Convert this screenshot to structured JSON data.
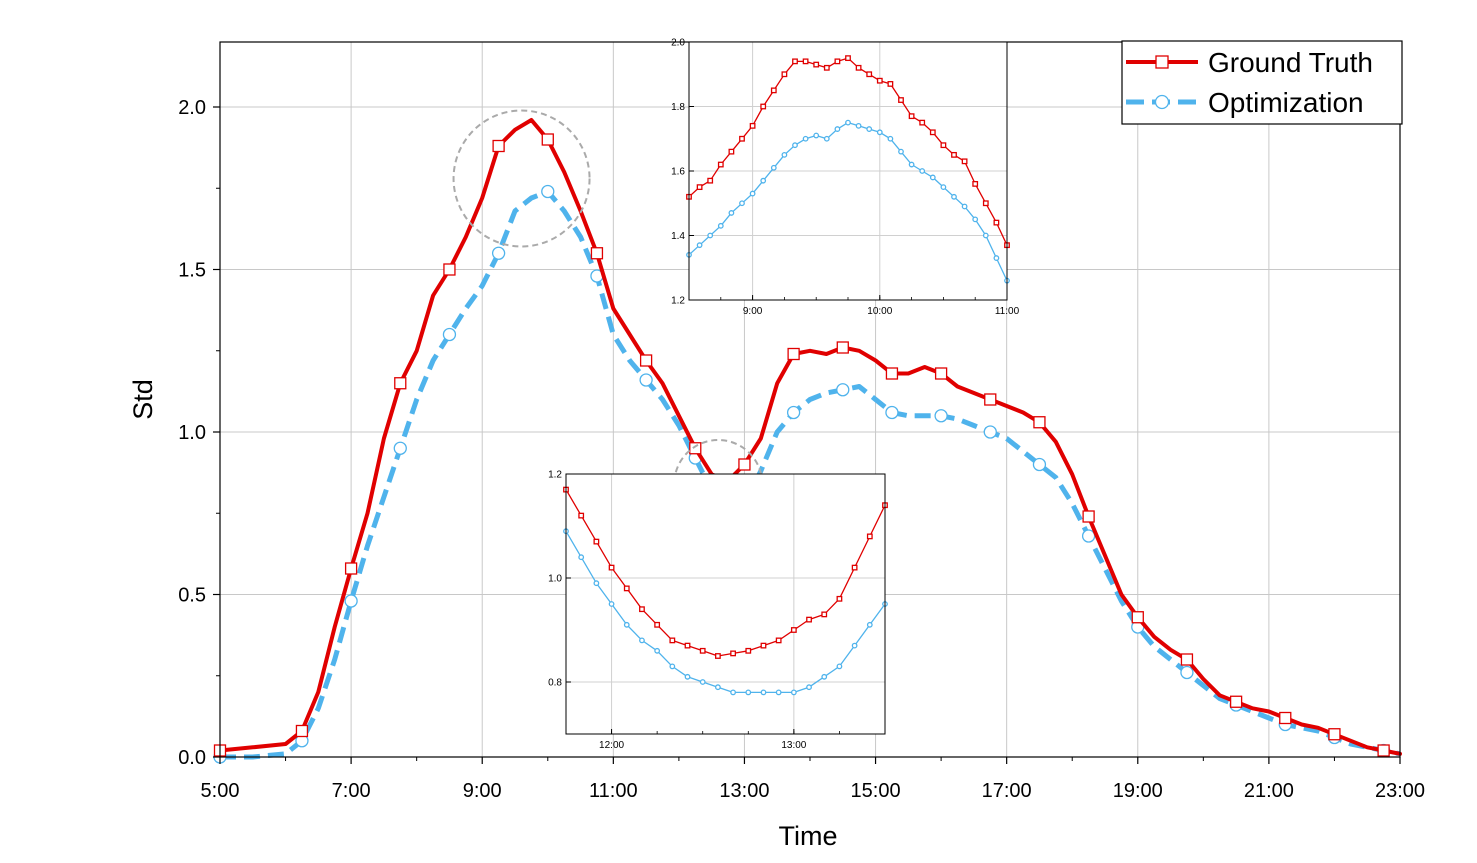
{
  "chart_data": [
    {
      "type": "line",
      "xlabel": "Time",
      "ylabel": "Std",
      "xlim": [
        "5:00",
        "23:00"
      ],
      "ylim": [
        0,
        2.2
      ],
      "grid": true,
      "legend_position": "top-right",
      "x_ticks": [
        "5:00",
        "7:00",
        "9:00",
        "11:00",
        "13:00",
        "15:00",
        "17:00",
        "19:00",
        "21:00",
        "23:00"
      ],
      "y_ticks": [
        "0.0",
        "0.5",
        "1.0",
        "1.5",
        "2.0"
      ],
      "series": [
        {
          "name": "Ground Truth",
          "color": "#e00000",
          "style": "solid",
          "marker": "square",
          "x": [
            "5:00",
            "5:30",
            "6:00",
            "6:15",
            "6:30",
            "6:45",
            "7:00",
            "7:15",
            "7:30",
            "7:45",
            "8:00",
            "8:15",
            "8:30",
            "8:45",
            "9:00",
            "9:15",
            "9:30",
            "9:45",
            "10:00",
            "10:15",
            "10:30",
            "10:45",
            "11:00",
            "11:15",
            "11:30",
            "11:45",
            "12:00",
            "12:15",
            "12:30",
            "12:45",
            "13:00",
            "13:15",
            "13:30",
            "13:45",
            "14:00",
            "14:15",
            "14:30",
            "14:45",
            "15:00",
            "15:15",
            "15:30",
            "15:45",
            "16:00",
            "16:15",
            "16:30",
            "16:45",
            "17:00",
            "17:15",
            "17:30",
            "17:45",
            "18:00",
            "18:15",
            "18:30",
            "18:45",
            "19:00",
            "19:15",
            "19:30",
            "19:45",
            "20:00",
            "20:15",
            "20:30",
            "20:45",
            "21:00",
            "21:15",
            "21:30",
            "21:45",
            "22:00",
            "22:15",
            "22:30",
            "22:45",
            "23:00"
          ],
          "y": [
            0.02,
            0.03,
            0.04,
            0.08,
            0.2,
            0.4,
            0.58,
            0.75,
            0.98,
            1.15,
            1.25,
            1.42,
            1.5,
            1.6,
            1.72,
            1.88,
            1.93,
            1.96,
            1.9,
            1.8,
            1.68,
            1.55,
            1.38,
            1.3,
            1.22,
            1.15,
            1.05,
            0.95,
            0.87,
            0.85,
            0.9,
            0.98,
            1.15,
            1.24,
            1.25,
            1.24,
            1.26,
            1.25,
            1.22,
            1.18,
            1.18,
            1.2,
            1.18,
            1.14,
            1.12,
            1.1,
            1.08,
            1.06,
            1.03,
            0.97,
            0.87,
            0.74,
            0.62,
            0.5,
            0.43,
            0.37,
            0.33,
            0.3,
            0.24,
            0.19,
            0.17,
            0.15,
            0.14,
            0.12,
            0.1,
            0.09,
            0.07,
            0.05,
            0.03,
            0.02,
            0.01
          ]
        },
        {
          "name": "Optimization",
          "color": "#4fb3ec",
          "style": "dashed",
          "marker": "circle",
          "x": [
            "5:00",
            "5:30",
            "6:00",
            "6:15",
            "6:30",
            "6:45",
            "7:00",
            "7:15",
            "7:30",
            "7:45",
            "8:00",
            "8:15",
            "8:30",
            "8:45",
            "9:00",
            "9:15",
            "9:30",
            "9:45",
            "10:00",
            "10:15",
            "10:30",
            "10:45",
            "11:00",
            "11:15",
            "11:30",
            "11:45",
            "12:00",
            "12:15",
            "12:30",
            "12:45",
            "13:00",
            "13:15",
            "13:30",
            "13:45",
            "14:00",
            "14:15",
            "14:30",
            "14:45",
            "15:00",
            "15:15",
            "15:30",
            "15:45",
            "16:00",
            "16:15",
            "16:30",
            "16:45",
            "17:00",
            "17:15",
            "17:30",
            "17:45",
            "18:00",
            "18:15",
            "18:30",
            "18:45",
            "19:00",
            "19:15",
            "19:30",
            "19:45",
            "20:00",
            "20:15",
            "20:30",
            "20:45",
            "21:00",
            "21:15",
            "21:30",
            "21:45",
            "22:00",
            "22:15",
            "22:30",
            "22:45",
            "23:00"
          ],
          "y": [
            0.0,
            0.0,
            0.01,
            0.05,
            0.15,
            0.3,
            0.48,
            0.65,
            0.8,
            0.95,
            1.1,
            1.22,
            1.3,
            1.38,
            1.45,
            1.55,
            1.68,
            1.72,
            1.74,
            1.68,
            1.6,
            1.48,
            1.3,
            1.22,
            1.16,
            1.1,
            1.02,
            0.92,
            0.82,
            0.8,
            0.78,
            0.88,
            1.0,
            1.06,
            1.1,
            1.12,
            1.13,
            1.14,
            1.1,
            1.06,
            1.05,
            1.05,
            1.05,
            1.04,
            1.02,
            1.0,
            0.98,
            0.94,
            0.9,
            0.86,
            0.78,
            0.68,
            0.58,
            0.48,
            0.4,
            0.34,
            0.3,
            0.26,
            0.22,
            0.18,
            0.16,
            0.14,
            0.12,
            0.1,
            0.09,
            0.08,
            0.06,
            0.04,
            0.03,
            0.02,
            0.01
          ]
        }
      ],
      "annotations": [
        "dashed circle around the 9:00–10:00 peak",
        "dashed circle around the 12:30 minimum"
      ]
    },
    {
      "type": "line",
      "inset": true,
      "xlim": [
        "8:30",
        "11:00"
      ],
      "ylim": [
        1.2,
        2.0
      ],
      "x_ticks": [
        "9:00",
        "10:00",
        "11:00"
      ],
      "y_ticks": [
        "1.2",
        "1.4",
        "1.6",
        "1.8",
        "2.0"
      ],
      "series": [
        {
          "name": "Ground Truth",
          "x": [
            "8:30",
            "8:35",
            "8:40",
            "8:45",
            "8:50",
            "8:55",
            "9:00",
            "9:05",
            "9:10",
            "9:15",
            "9:20",
            "9:25",
            "9:30",
            "9:35",
            "9:40",
            "9:45",
            "9:50",
            "9:55",
            "10:00",
            "10:05",
            "10:10",
            "10:15",
            "10:20",
            "10:25",
            "10:30",
            "10:35",
            "10:40",
            "10:45",
            "10:50",
            "10:55",
            "11:00"
          ],
          "y": [
            1.52,
            1.55,
            1.57,
            1.62,
            1.66,
            1.7,
            1.74,
            1.8,
            1.85,
            1.9,
            1.94,
            1.94,
            1.93,
            1.92,
            1.94,
            1.95,
            1.92,
            1.9,
            1.88,
            1.87,
            1.82,
            1.77,
            1.75,
            1.72,
            1.68,
            1.65,
            1.63,
            1.56,
            1.5,
            1.44,
            1.37
          ]
        },
        {
          "name": "Optimization",
          "x": [
            "8:30",
            "8:35",
            "8:40",
            "8:45",
            "8:50",
            "8:55",
            "9:00",
            "9:05",
            "9:10",
            "9:15",
            "9:20",
            "9:25",
            "9:30",
            "9:35",
            "9:40",
            "9:45",
            "9:50",
            "9:55",
            "10:00",
            "10:05",
            "10:10",
            "10:15",
            "10:20",
            "10:25",
            "10:30",
            "10:35",
            "10:40",
            "10:45",
            "10:50",
            "10:55",
            "11:00"
          ],
          "y": [
            1.34,
            1.37,
            1.4,
            1.43,
            1.47,
            1.5,
            1.53,
            1.57,
            1.61,
            1.65,
            1.68,
            1.7,
            1.71,
            1.7,
            1.73,
            1.75,
            1.74,
            1.73,
            1.72,
            1.7,
            1.66,
            1.62,
            1.6,
            1.58,
            1.55,
            1.52,
            1.49,
            1.45,
            1.4,
            1.33,
            1.26
          ]
        }
      ]
    },
    {
      "type": "line",
      "inset": true,
      "xlim": [
        "11:45",
        "13:30"
      ],
      "ylim": [
        0.7,
        1.2
      ],
      "x_ticks": [
        "12:00",
        "13:00"
      ],
      "y_ticks": [
        "0.8",
        "1.0",
        "1.2"
      ],
      "series": [
        {
          "name": "Ground Truth",
          "x": [
            "11:45",
            "11:50",
            "11:55",
            "12:00",
            "12:05",
            "12:10",
            "12:15",
            "12:20",
            "12:25",
            "12:30",
            "12:35",
            "12:40",
            "12:45",
            "12:50",
            "12:55",
            "13:00",
            "13:05",
            "13:10",
            "13:15",
            "13:20",
            "13:25",
            "13:30"
          ],
          "y": [
            1.17,
            1.12,
            1.07,
            1.02,
            0.98,
            0.94,
            0.91,
            0.88,
            0.87,
            0.86,
            0.85,
            0.855,
            0.86,
            0.87,
            0.88,
            0.9,
            0.92,
            0.93,
            0.96,
            1.02,
            1.08,
            1.14
          ],
          "color": "#e00000"
        },
        {
          "name": "Optimization",
          "x": [
            "11:45",
            "11:50",
            "11:55",
            "12:00",
            "12:05",
            "12:10",
            "12:15",
            "12:20",
            "12:25",
            "12:30",
            "12:35",
            "12:40",
            "12:45",
            "12:50",
            "12:55",
            "13:00",
            "13:05",
            "13:10",
            "13:15",
            "13:20",
            "13:25",
            "13:30"
          ],
          "y": [
            1.09,
            1.04,
            0.99,
            0.95,
            0.91,
            0.88,
            0.86,
            0.83,
            0.81,
            0.8,
            0.79,
            0.78,
            0.78,
            0.78,
            0.78,
            0.78,
            0.79,
            0.81,
            0.83,
            0.87,
            0.91,
            0.95
          ],
          "color": "#4fb3ec"
        }
      ]
    }
  ]
}
